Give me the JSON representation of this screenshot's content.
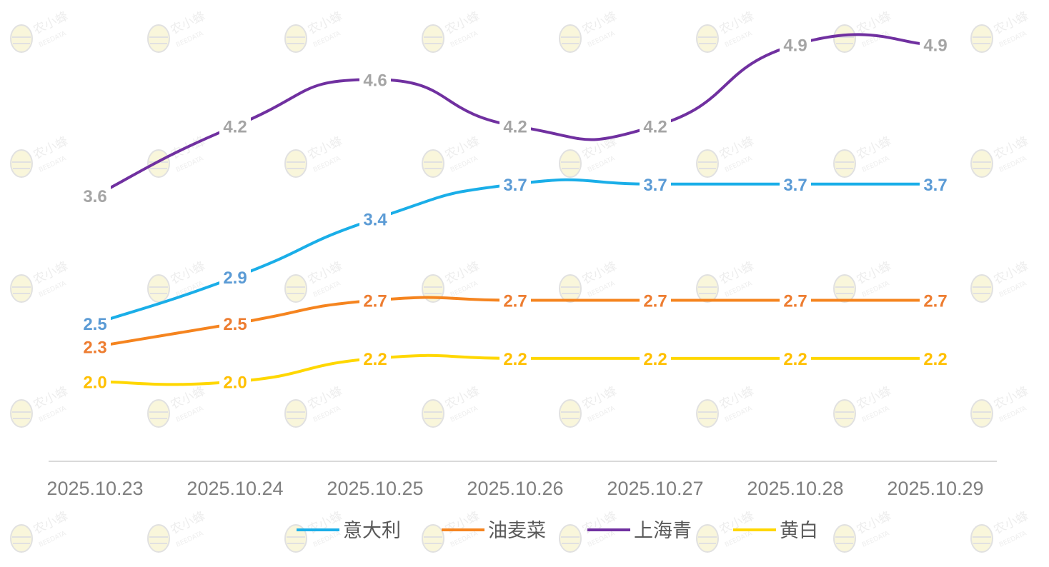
{
  "chart_data": {
    "type": "line",
    "title": "",
    "xlabel": "",
    "ylabel": "",
    "categories": [
      "2025.10.23",
      "2025.10.24",
      "2025.10.25",
      "2025.10.26",
      "2025.10.27",
      "2025.10.28",
      "2025.10.29"
    ],
    "ylim": [
      1.4,
      5.1
    ],
    "grid": false,
    "legend": "bottom",
    "series": [
      {
        "name": "意大利",
        "color": "#1aaee8",
        "label_color": "#5b9bd5",
        "values": [
          2.5,
          2.9,
          3.4,
          3.7,
          3.7,
          3.7,
          3.7
        ]
      },
      {
        "name": "油麦菜",
        "color": "#f5841f",
        "label_color": "#ed7d31",
        "values": [
          2.3,
          2.5,
          2.7,
          2.7,
          2.7,
          2.7,
          2.7
        ]
      },
      {
        "name": "上海青",
        "color": "#7030a0",
        "label_color": "#a5a5a5",
        "values": [
          3.6,
          4.2,
          4.6,
          4.2,
          4.2,
          4.9,
          4.9
        ]
      },
      {
        "name": "黄白",
        "color": "#ffd700",
        "label_color": "#ffc000",
        "values": [
          2.0,
          2.0,
          2.2,
          2.2,
          2.2,
          2.2,
          2.2
        ]
      }
    ]
  },
  "watermark": {
    "brand": "农小蜂",
    "sub": "BEEDATA"
  }
}
